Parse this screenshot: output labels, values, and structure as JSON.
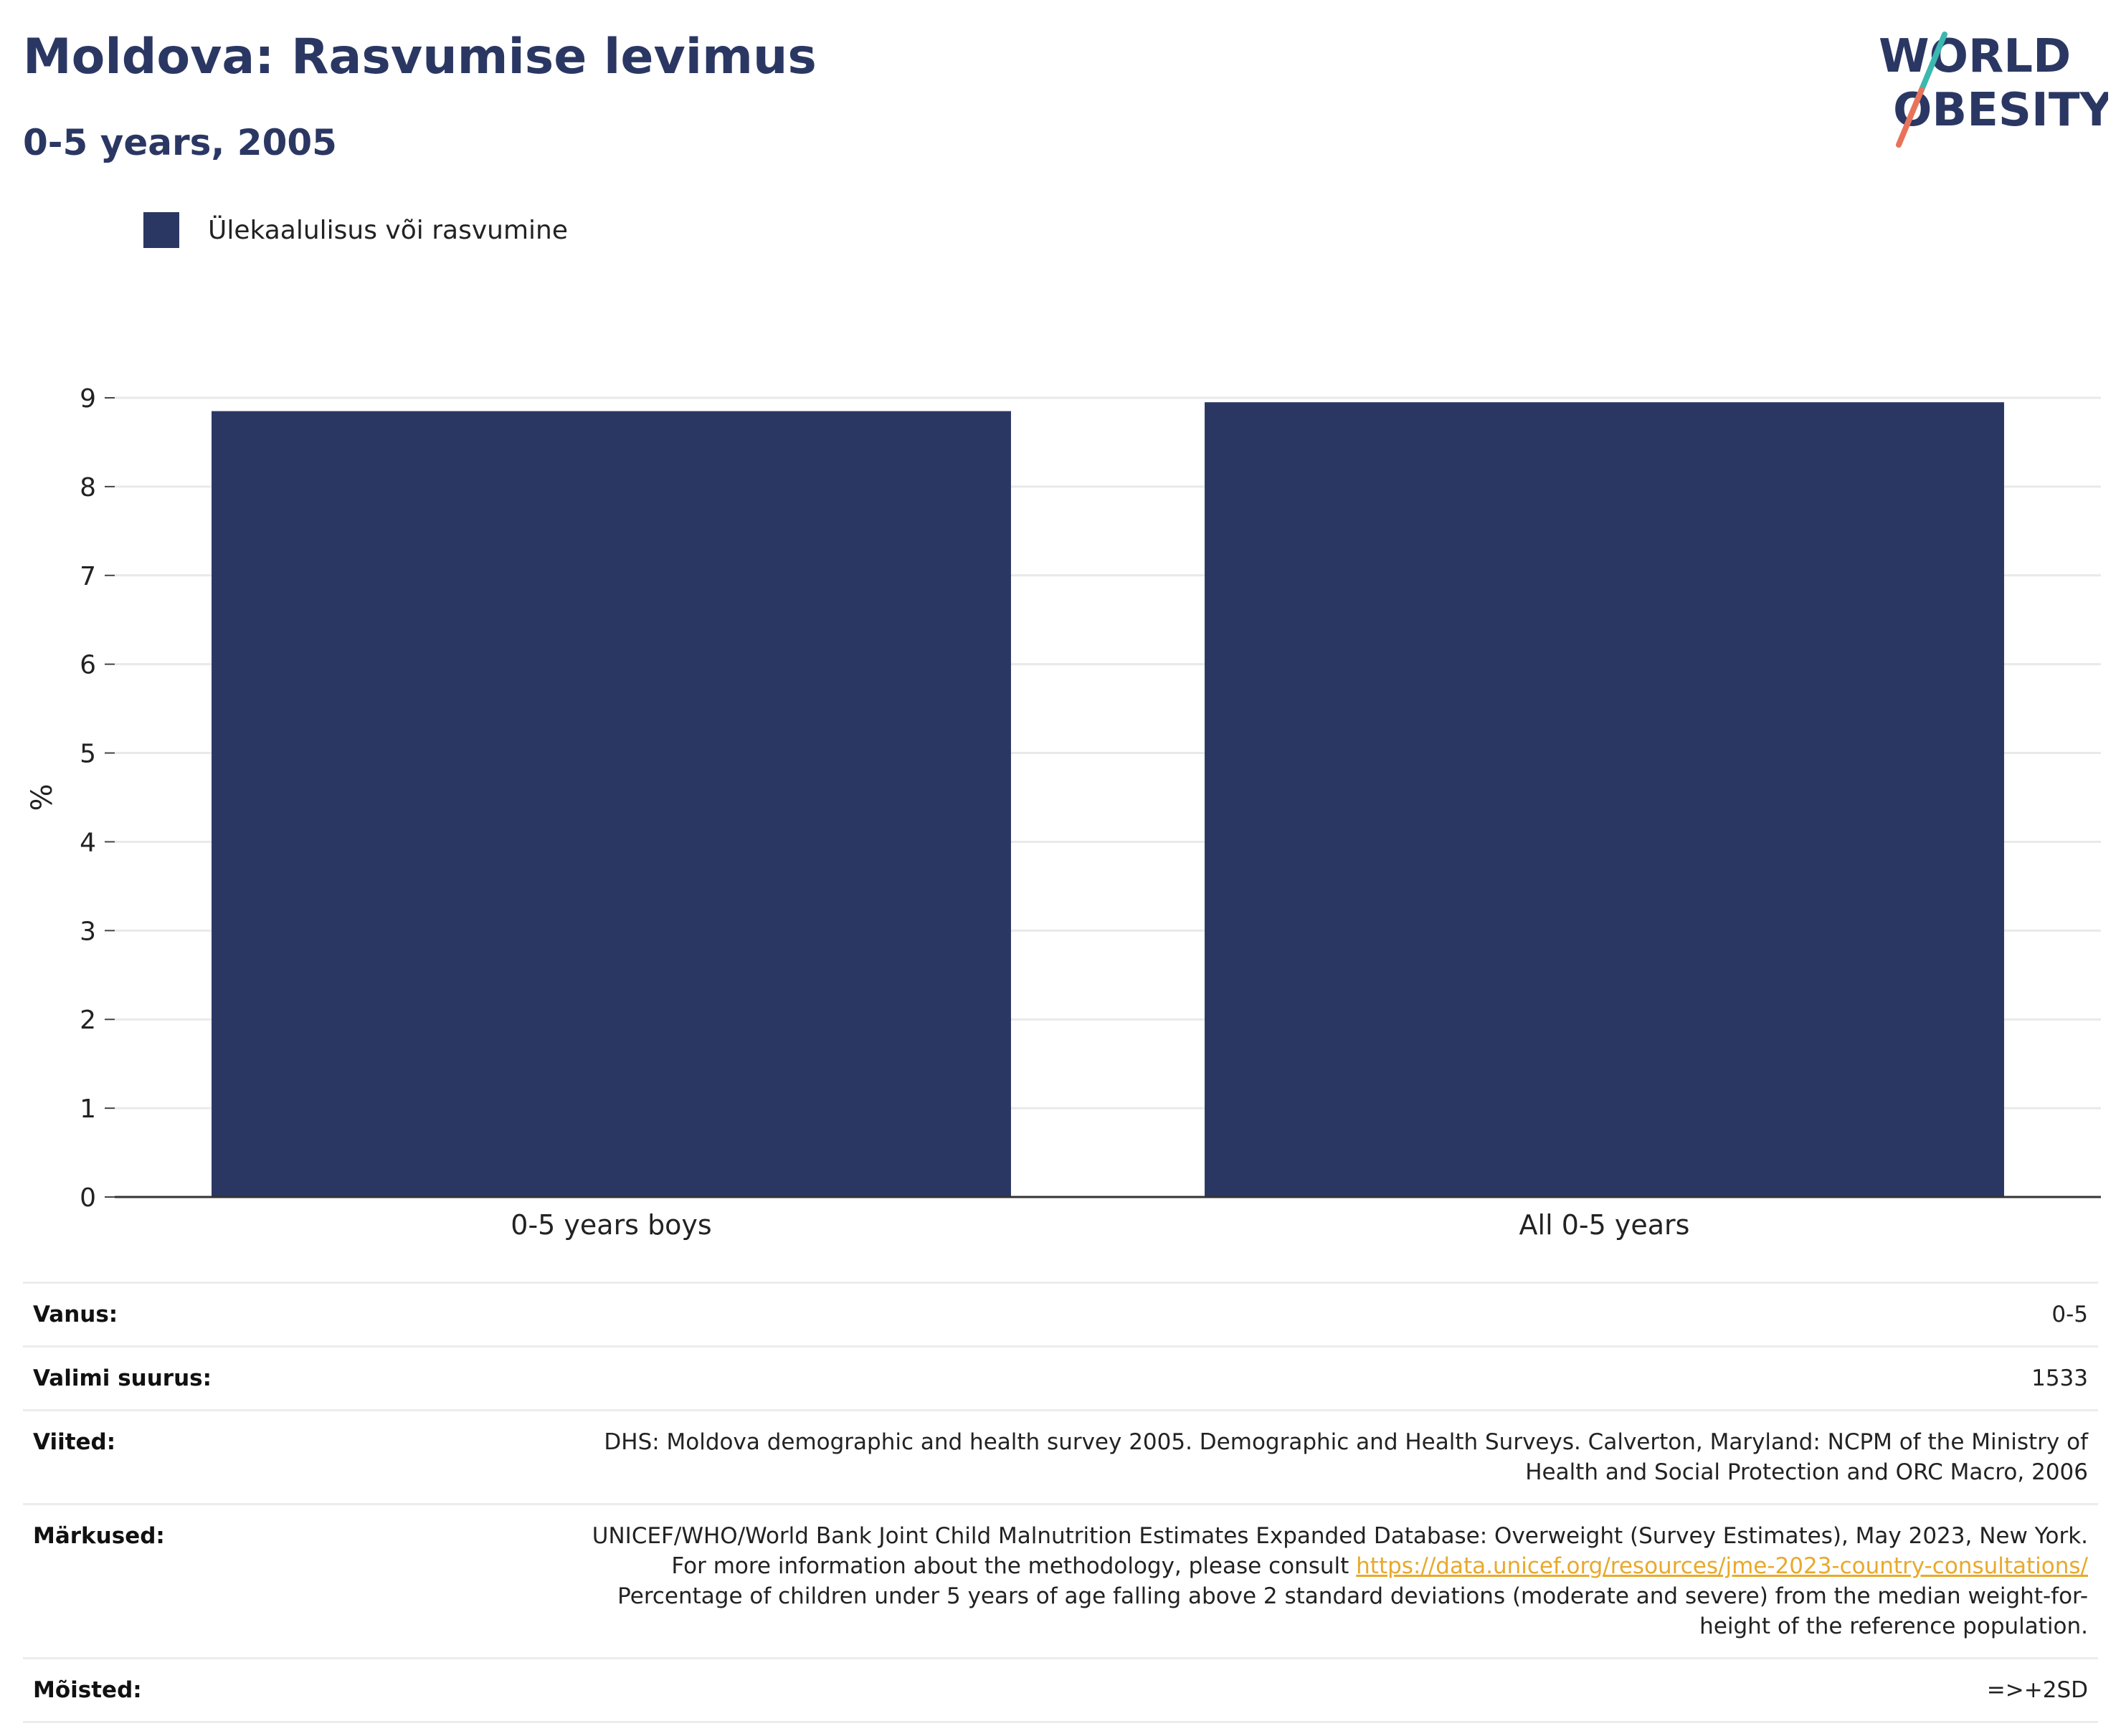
{
  "header": {
    "title": "Moldova: Rasvumise levimus",
    "subtitle": "0-5 years, 2005"
  },
  "logo": {
    "line1": "WORLD",
    "line2": "OBESITY"
  },
  "legend": {
    "label": "Ülekaalulisus või rasvumine",
    "color": "#2b3763"
  },
  "chart_data": {
    "type": "bar",
    "categories": [
      "0-5 years boys",
      "All 0-5 years"
    ],
    "series": [
      {
        "name": "Ülekaalulisus või rasvumine",
        "values": [
          8.85,
          8.95
        ],
        "color": "#2b3763"
      }
    ],
    "ylabel": "%",
    "ylim": [
      0,
      9
    ],
    "yticks": [
      0,
      1,
      2,
      3,
      4,
      5,
      6,
      7,
      8,
      9
    ],
    "grid": true,
    "legend_position": "top-left"
  },
  "info": {
    "age": {
      "label": "Vanus:",
      "value": "0-5"
    },
    "sample": {
      "label": "Valimi suurus:",
      "value": "1533"
    },
    "references": {
      "label": "Viited:",
      "value": "DHS: Moldova demographic and health survey 2005. Demographic and Health Surveys. Calverton, Maryland: NCPM of the Ministry of Health and Social Protection and ORC Macro, 2006"
    },
    "notes": {
      "label": "Märkused:",
      "text_before": "UNICEF/WHO/World Bank Joint Child Malnutrition Estimates Expanded Database: Overweight (Survey Estimates), May 2023, New York. For more information about the methodology, please consult ",
      "link": "https://data.unicef.org/resources/jme-2023-country-consultations/",
      "text_after": " Percentage of children under 5 years of age falling above 2 standard deviations (moderate and severe) from the median weight-for-height of the reference population."
    },
    "definitions": {
      "label": "Mõisted:",
      "value": "=>+2SD"
    }
  }
}
